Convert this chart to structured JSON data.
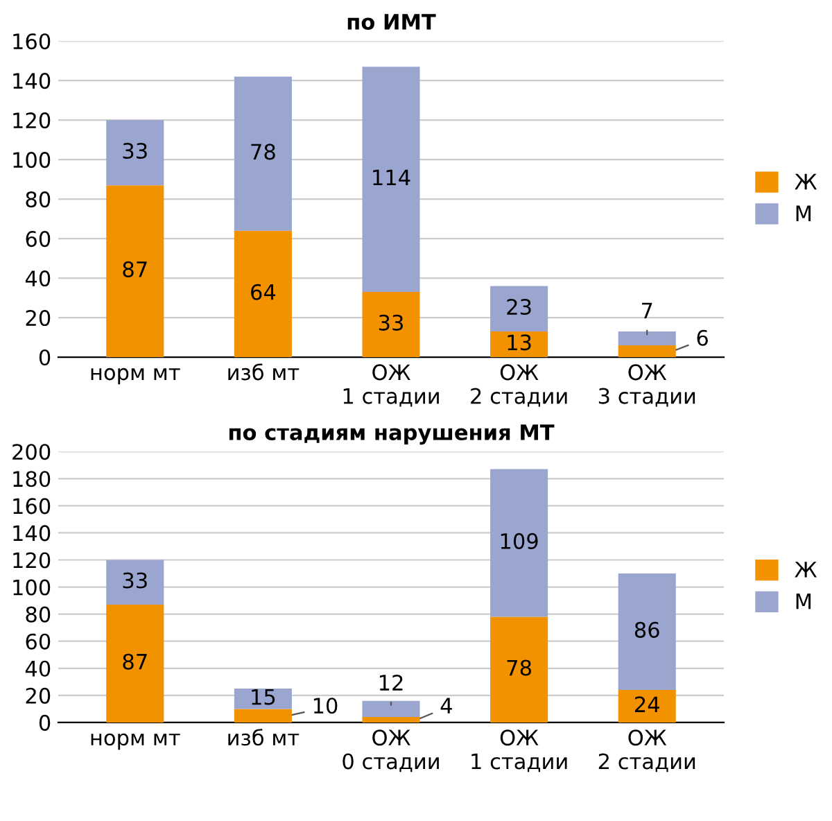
{
  "chart_data": [
    {
      "type": "bar",
      "title": "по ИМТ",
      "stacked": true,
      "categories": [
        "норм мт",
        "изб мт",
        "ОЖ\n1 стадии",
        "ОЖ\n2 стадии",
        "ОЖ\n3 стадии"
      ],
      "series": [
        {
          "name": "Ж",
          "color": "#f39200",
          "values": [
            87,
            64,
            33,
            13,
            6
          ]
        },
        {
          "name": "М",
          "color": "#9aa6cf",
          "values": [
            33,
            78,
            114,
            23,
            7
          ]
        }
      ],
      "ylim": [
        0,
        160
      ],
      "yticks": [
        0,
        20,
        40,
        60,
        80,
        100,
        120,
        140,
        160
      ],
      "grid": "y",
      "legend": "right",
      "data_labels": true
    },
    {
      "type": "bar",
      "title": "по стадиям нарушения МТ",
      "stacked": true,
      "categories": [
        "норм мт",
        "изб мт",
        "ОЖ\n0 стадии",
        "ОЖ\n1 стадии",
        "ОЖ\n2 стадии"
      ],
      "series": [
        {
          "name": "Ж",
          "color": "#f39200",
          "values": [
            87,
            10,
            4,
            78,
            24
          ]
        },
        {
          "name": "М",
          "color": "#9aa6cf",
          "values": [
            33,
            15,
            12,
            109,
            86
          ]
        }
      ],
      "ylim": [
        0,
        200
      ],
      "yticks": [
        0,
        20,
        40,
        60,
        80,
        100,
        120,
        140,
        160,
        180,
        200
      ],
      "grid": "y",
      "legend": "right",
      "data_labels": true
    }
  ]
}
